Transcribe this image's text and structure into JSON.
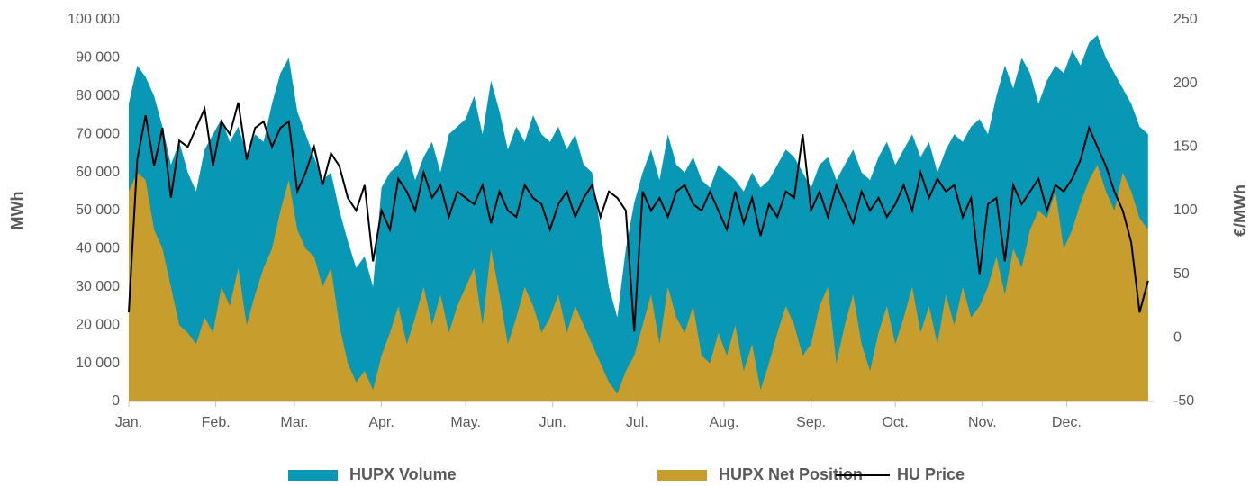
{
  "chart_data": {
    "type": "area_line",
    "y_label": "MWh",
    "y2_label": "€/MWh",
    "xlim": [
      0,
      365
    ],
    "xticks": [
      {
        "value": 0,
        "label": "Jan."
      },
      {
        "value": 31,
        "label": "Feb."
      },
      {
        "value": 59,
        "label": "Mar."
      },
      {
        "value": 90,
        "label": "Apr."
      },
      {
        "value": 120,
        "label": "May."
      },
      {
        "value": 151,
        "label": "Jun."
      },
      {
        "value": 181,
        "label": "Jul."
      },
      {
        "value": 212,
        "label": "Aug."
      },
      {
        "value": 243,
        "label": "Sep."
      },
      {
        "value": 273,
        "label": "Oct."
      },
      {
        "value": 304,
        "label": "Nov."
      },
      {
        "value": 334,
        "label": "Dec."
      }
    ],
    "ylim": [
      0,
      100000
    ],
    "yticks": [
      {
        "value": 0,
        "label": "0"
      },
      {
        "value": 10000,
        "label": "10 000"
      },
      {
        "value": 20000,
        "label": "20 000"
      },
      {
        "value": 30000,
        "label": "30 000"
      },
      {
        "value": 40000,
        "label": "40 000"
      },
      {
        "value": 50000,
        "label": "50 000"
      },
      {
        "value": 60000,
        "label": "60 000"
      },
      {
        "value": 70000,
        "label": "70 000"
      },
      {
        "value": 80000,
        "label": "80 000"
      },
      {
        "value": 90000,
        "label": "90 000"
      },
      {
        "value": 100000,
        "label": "100 000"
      }
    ],
    "y2lim": [
      -50,
      250
    ],
    "y2ticks": [
      -50,
      0,
      50,
      100,
      150,
      200,
      250
    ],
    "x": [
      0,
      3,
      6,
      9,
      12,
      15,
      18,
      21,
      24,
      27,
      30,
      33,
      36,
      39,
      42,
      45,
      48,
      51,
      54,
      57,
      60,
      63,
      66,
      69,
      72,
      75,
      78,
      81,
      84,
      87,
      90,
      93,
      96,
      99,
      102,
      105,
      108,
      111,
      114,
      117,
      120,
      123,
      126,
      129,
      132,
      135,
      138,
      141,
      144,
      147,
      150,
      153,
      156,
      159,
      162,
      165,
      168,
      171,
      174,
      177,
      180,
      183,
      186,
      189,
      192,
      195,
      198,
      201,
      204,
      207,
      210,
      213,
      216,
      219,
      222,
      225,
      228,
      231,
      234,
      237,
      240,
      243,
      246,
      249,
      252,
      255,
      258,
      261,
      264,
      267,
      270,
      273,
      276,
      279,
      282,
      285,
      288,
      291,
      294,
      297,
      300,
      303,
      306,
      309,
      312,
      315,
      318,
      321,
      324,
      327,
      330,
      333,
      336,
      339,
      342,
      345,
      348,
      351,
      354,
      357,
      360,
      363
    ],
    "series": [
      {
        "name": "HUPX Volume",
        "color": "#0897b4",
        "kind": "area",
        "values": [
          78000,
          88000,
          85000,
          80000,
          72000,
          62000,
          68000,
          60000,
          55000,
          66000,
          70000,
          74000,
          68000,
          72000,
          65000,
          70000,
          68000,
          78000,
          86000,
          90000,
          76000,
          70000,
          64000,
          58000,
          60000,
          50000,
          42000,
          35000,
          38000,
          30000,
          56000,
          60000,
          62000,
          66000,
          58000,
          64000,
          68000,
          60000,
          70000,
          72000,
          74000,
          80000,
          70000,
          84000,
          76000,
          66000,
          72000,
          68000,
          75000,
          70000,
          68000,
          72000,
          66000,
          70000,
          62000,
          60000,
          45000,
          30000,
          22000,
          40000,
          52000,
          60000,
          66000,
          58000,
          70000,
          62000,
          60000,
          64000,
          58000,
          56000,
          62000,
          60000,
          58000,
          55000,
          60000,
          56000,
          58000,
          62000,
          66000,
          64000,
          60000,
          56000,
          62000,
          64000,
          58000,
          62000,
          66000,
          60000,
          58000,
          64000,
          68000,
          62000,
          66000,
          70000,
          64000,
          68000,
          60000,
          66000,
          70000,
          68000,
          72000,
          74000,
          70000,
          80000,
          88000,
          82000,
          90000,
          86000,
          78000,
          84000,
          88000,
          86000,
          92000,
          88000,
          94000,
          96000,
          90000,
          86000,
          82000,
          78000,
          72000,
          70000
        ]
      },
      {
        "name": "HUPX Net Position",
        "color": "#c79d2d",
        "kind": "area",
        "values": [
          55000,
          60000,
          58000,
          45000,
          40000,
          30000,
          20000,
          18000,
          15000,
          22000,
          18000,
          30000,
          25000,
          35000,
          20000,
          28000,
          35000,
          40000,
          50000,
          58000,
          45000,
          40000,
          38000,
          30000,
          35000,
          20000,
          10000,
          5000,
          8000,
          3000,
          12000,
          18000,
          25000,
          15000,
          22000,
          30000,
          20000,
          28000,
          18000,
          25000,
          30000,
          35000,
          20000,
          40000,
          28000,
          15000,
          22000,
          30000,
          25000,
          18000,
          22000,
          28000,
          18000,
          25000,
          20000,
          15000,
          10000,
          5000,
          2000,
          8000,
          12000,
          20000,
          28000,
          15000,
          30000,
          22000,
          18000,
          25000,
          12000,
          10000,
          18000,
          12000,
          20000,
          8000,
          15000,
          3000,
          10000,
          18000,
          25000,
          20000,
          12000,
          15000,
          25000,
          30000,
          10000,
          20000,
          28000,
          15000,
          8000,
          18000,
          25000,
          15000,
          22000,
          30000,
          18000,
          25000,
          15000,
          28000,
          20000,
          30000,
          22000,
          25000,
          30000,
          38000,
          28000,
          40000,
          35000,
          45000,
          50000,
          48000,
          55000,
          40000,
          45000,
          52000,
          58000,
          62000,
          55000,
          50000,
          60000,
          55000,
          48000,
          45000
        ]
      },
      {
        "name": "HU Price",
        "color": "#000000",
        "kind": "line",
        "axis": "y2",
        "values": [
          20,
          140,
          175,
          135,
          165,
          110,
          155,
          150,
          165,
          180,
          135,
          170,
          160,
          185,
          140,
          165,
          170,
          150,
          165,
          170,
          115,
          130,
          150,
          120,
          145,
          135,
          110,
          100,
          120,
          60,
          100,
          85,
          125,
          115,
          100,
          130,
          110,
          120,
          95,
          115,
          110,
          105,
          120,
          90,
          115,
          100,
          95,
          120,
          110,
          105,
          85,
          105,
          115,
          95,
          110,
          120,
          95,
          115,
          110,
          100,
          5,
          115,
          100,
          110,
          95,
          115,
          120,
          105,
          100,
          115,
          100,
          85,
          115,
          90,
          110,
          80,
          105,
          95,
          115,
          110,
          160,
          100,
          115,
          95,
          120,
          105,
          90,
          115,
          100,
          110,
          95,
          105,
          120,
          100,
          130,
          110,
          125,
          115,
          120,
          95,
          110,
          50,
          105,
          110,
          60,
          120,
          105,
          115,
          125,
          100,
          120,
          115,
          125,
          140,
          165,
          150,
          135,
          115,
          100,
          75,
          20,
          45
        ]
      }
    ]
  }
}
